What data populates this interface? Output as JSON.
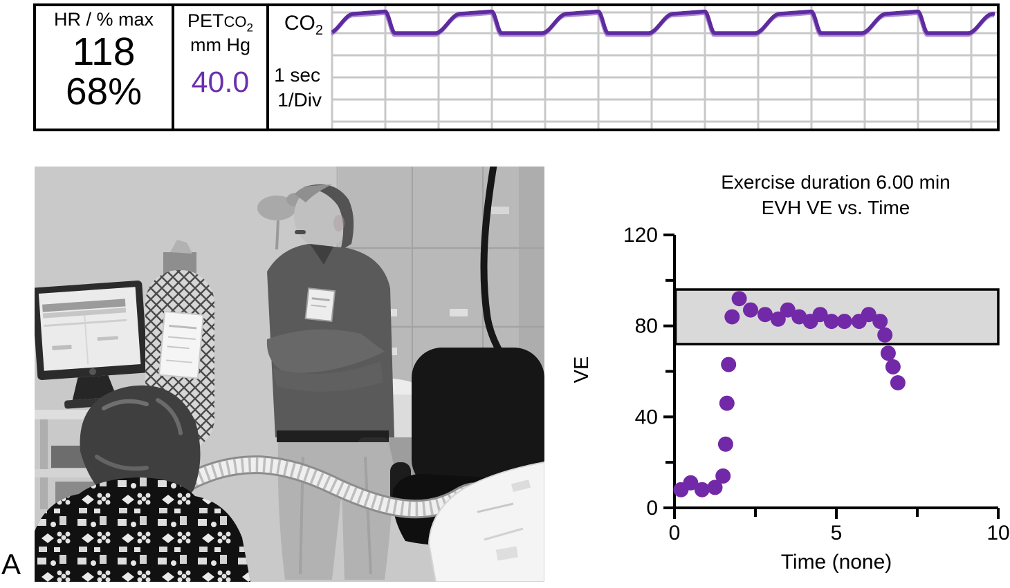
{
  "panel_label": "A",
  "colors": {
    "purple_value": "#6a2fae",
    "purple_trace": "#5e2b9f",
    "purple_trace_echo": "#9d76cf",
    "purple_dot": "#7229a8",
    "band_fill": "#d9d9d9",
    "grid": "#c8c8c8",
    "ink": "#000000"
  },
  "monitor_strip": {
    "hr_label": "HR / % max",
    "hr_value": "118",
    "hr_percent": "68%",
    "pet_prefix": "PET",
    "pet_gas": "CO",
    "pet_gas_sub": "2",
    "pet_units": "mm Hg",
    "pet_value": "40.0",
    "capno_gas": "CO",
    "capno_gas_sub": "2",
    "sweep_line1": "1 sec",
    "sweep_line2": "1/Div",
    "seconds_per_division": 1,
    "breath_period_divisions": 2
  },
  "photo": {
    "kind": "grayscale clinical photograph",
    "scene": "technician standing with crossed arms beside a seated patient during an EVH test; computer monitor, mesh-wrapped gas cylinder with paper tag, corrugated breathing hose, black office chair, exam table and rebreathing bag"
  },
  "chart": {
    "title_line1": "Exercise duration 6.00 min",
    "title_line2": "EVH VE vs. Time",
    "ylabel": "VE",
    "xlabel": "Time (none)"
  },
  "chart_data": {
    "type": "scatter",
    "title": "Exercise duration 6.00 min",
    "subtitle": "EVH VE vs. Time",
    "xlabel": "Time (none)",
    "ylabel": "VE",
    "xlim": [
      0,
      10
    ],
    "ylim": [
      0,
      120
    ],
    "xticks": [
      0,
      5,
      10
    ],
    "xticks_minor": [
      2.5,
      7.5
    ],
    "yticks": [
      0,
      40,
      80,
      120
    ],
    "yticks_minor": [
      20,
      60,
      100
    ],
    "grid": false,
    "target_band": {
      "ymin": 72,
      "ymax": 96
    },
    "marker": {
      "shape": "circle",
      "radius_px": 11,
      "color": "#7229a8"
    },
    "x": [
      0.2,
      0.5,
      0.85,
      1.25,
      1.5,
      1.58,
      1.62,
      1.67,
      1.78,
      2.0,
      2.35,
      2.8,
      3.2,
      3.5,
      3.85,
      4.2,
      4.5,
      4.85,
      5.25,
      5.7,
      6.0,
      6.35,
      6.5,
      6.6,
      6.75,
      6.9
    ],
    "y": [
      8,
      11,
      8,
      9,
      14,
      28,
      46,
      63,
      84,
      92,
      87,
      85,
      83,
      87,
      84,
      82,
      85,
      82,
      82,
      82,
      85,
      82,
      76,
      68,
      62,
      55
    ]
  }
}
